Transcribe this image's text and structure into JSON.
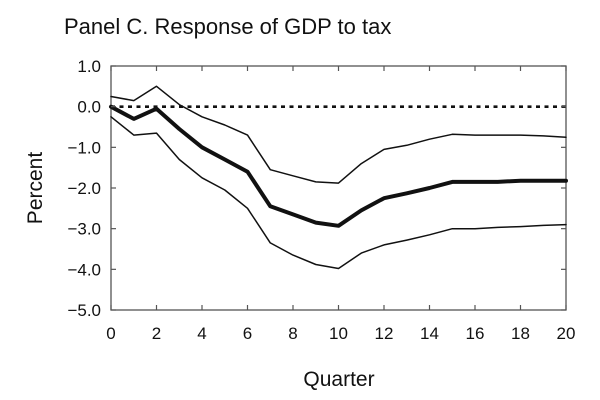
{
  "chart_data": {
    "type": "line",
    "title": "Panel C. Response of GDP to tax",
    "xlabel": "Quarter",
    "ylabel": "Percent",
    "xlim": [
      0,
      20
    ],
    "ylim": [
      -5.0,
      1.0
    ],
    "xticks": [
      "0",
      "2",
      "4",
      "6",
      "8",
      "10",
      "12",
      "14",
      "16",
      "18",
      "20"
    ],
    "yticks": [
      "1.0",
      "0.0",
      "−1.0",
      "−2.0",
      "−3.0",
      "−4.0",
      "−5.0"
    ],
    "grid": false,
    "legend": "none",
    "reference_line": {
      "y": 0,
      "style": "dotted"
    },
    "x": [
      0,
      1,
      2,
      3,
      4,
      5,
      6,
      7,
      8,
      9,
      10,
      11,
      12,
      13,
      14,
      15,
      16,
      17,
      18,
      19,
      20
    ],
    "series": [
      {
        "role": "upper-band",
        "color": "#111111",
        "values": [
          0.25,
          0.15,
          0.5,
          0.05,
          -0.25,
          -0.45,
          -0.7,
          -1.55,
          -1.7,
          -1.85,
          -1.88,
          -1.4,
          -1.05,
          -0.95,
          -0.8,
          -0.68,
          -0.7,
          -0.7,
          -0.7,
          -0.72,
          -0.75
        ]
      },
      {
        "role": "point-estimate",
        "color": "#111111",
        "values": [
          0.0,
          -0.3,
          -0.05,
          -0.55,
          -1.0,
          -1.3,
          -1.6,
          -2.45,
          -2.65,
          -2.85,
          -2.93,
          -2.55,
          -2.25,
          -2.13,
          -2.0,
          -1.85,
          -1.85,
          -1.85,
          -1.82,
          -1.82,
          -1.82
        ]
      },
      {
        "role": "lower-band",
        "color": "#111111",
        "values": [
          -0.25,
          -0.7,
          -0.65,
          -1.3,
          -1.75,
          -2.05,
          -2.5,
          -3.35,
          -3.65,
          -3.88,
          -3.98,
          -3.6,
          -3.4,
          -3.28,
          -3.15,
          -3.0,
          -3.0,
          -2.97,
          -2.95,
          -2.92,
          -2.9
        ]
      }
    ]
  }
}
